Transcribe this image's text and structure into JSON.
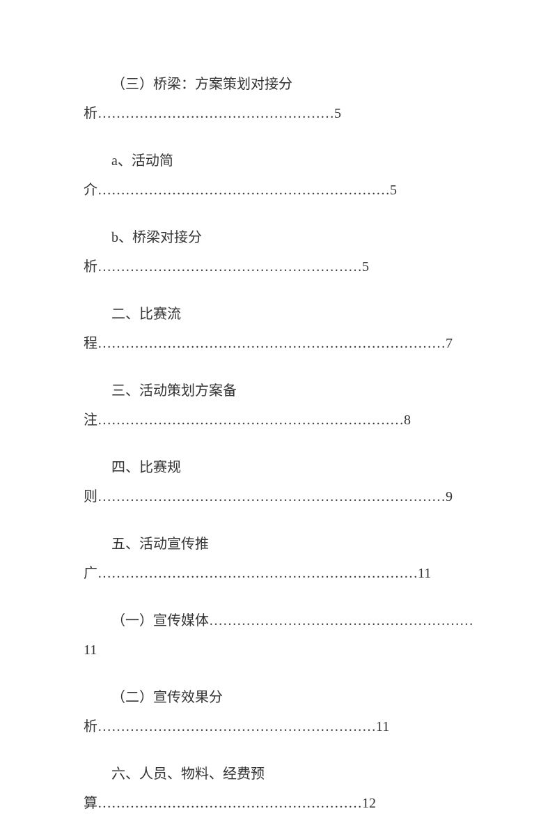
{
  "doc": {
    "font_size_pt": 15,
    "text_color": "#333333",
    "background_color": "#ffffff",
    "entries": [
      {
        "prefix_indent": true,
        "text_line1": "（三）桥梁：方案策划对接分",
        "text_line2": "析……………………………………………5",
        "multiline": true
      },
      {
        "prefix_indent": true,
        "text": "a、活动简介………………………………………………………5",
        "multiline": false
      },
      {
        "prefix_indent": true,
        "text": "b、桥梁对接分析…………………………………………………5",
        "multiline": false
      },
      {
        "prefix_indent": true,
        "text_line1": "二、比赛流",
        "text_line2": "程…………………………………………………………………7",
        "multiline": true
      },
      {
        "prefix_indent": true,
        "text_line1": "三、活动策划方案备",
        "text_line2": "注…………………………………………………………8",
        "multiline": true
      },
      {
        "prefix_indent": true,
        "text_line1": "四、比赛规",
        "text_line2": "则…………………………………………………………………9",
        "multiline": true
      },
      {
        "prefix_indent": true,
        "text_line1": "五、活动宣传推",
        "text_line2": "广……………………………………………………………11",
        "multiline": true
      },
      {
        "prefix_indent": true,
        "text": "（一）宣传媒体…………………………………………………11",
        "multiline": false
      },
      {
        "prefix_indent": true,
        "text_line1": "（二）宣传效果分",
        "text_line2": "析……………………………………………………11",
        "multiline": true
      },
      {
        "prefix_indent": true,
        "text_line1": "六、人员、物料、经费预",
        "text_line2": "算…………………………………………………12",
        "multiline": true
      }
    ]
  }
}
